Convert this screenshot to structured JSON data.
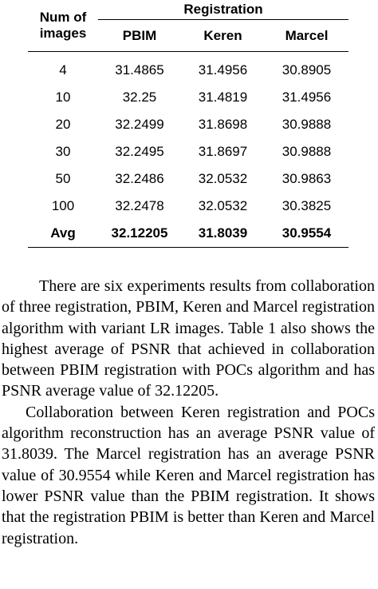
{
  "table": {
    "col_header_images": "Num of images",
    "col_header_group": "Registration",
    "methods": [
      "PBIM",
      "Keren",
      "Marcel"
    ],
    "rows": [
      {
        "images": "4",
        "values": [
          "31.4865",
          "31.4956",
          "30.8905"
        ]
      },
      {
        "images": "10",
        "values": [
          "32.25",
          "31.4819",
          "31.4956"
        ]
      },
      {
        "images": "20",
        "values": [
          "32.2499",
          "31.8698",
          "30.9888"
        ]
      },
      {
        "images": "30",
        "values": [
          "32.2495",
          "31.8697",
          "30.9888"
        ]
      },
      {
        "images": "50",
        "values": [
          "32.2486",
          "32.0532",
          "30.9863"
        ]
      },
      {
        "images": "100",
        "values": [
          "32.2478",
          "32.0532",
          "30.3825"
        ]
      }
    ],
    "avg": {
      "label": "Avg",
      "values": [
        "32.12205",
        "31.8039",
        "30.9554"
      ]
    }
  },
  "paragraphs": [
    "There are six experiments results from collaboration of three registration, PBIM, Keren and Marcel registration algorithm with variant LR images. Table 1 also shows the highest average of PSNR that achieved in collaboration between PBIM registration with POCs algorithm and  has PSNR average value of 32.12205.",
    "Collaboration between Keren registration and POCs algorithm reconstruction has an average PSNR value of 31.8039. The Marcel registration has an average  PSNR value of 30.9554 while Keren and Marcel registration has lower PSNR value than the PBIM registration. It shows that the registration PBIM is better than Keren and Marcel registration."
  ]
}
